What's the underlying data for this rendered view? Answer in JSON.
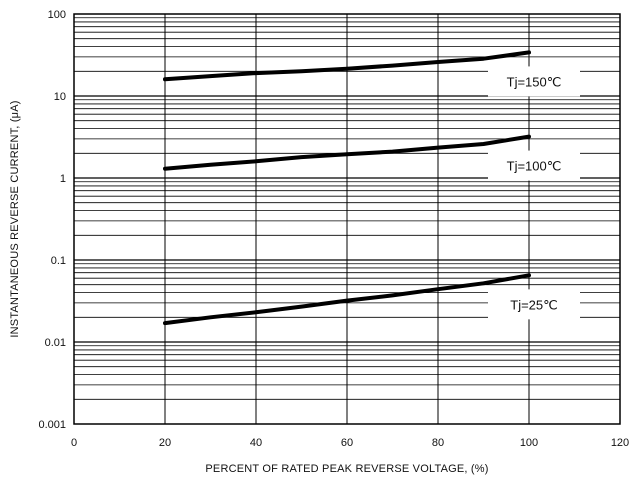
{
  "chart_data": {
    "type": "line",
    "title": "",
    "xlabel": "PERCENT OF RATED PEAK REVERSE VOLTAGE, (%)",
    "ylabel": "INSTANTANEOUS REVERSE CURRENT,  (μA)",
    "xlim": [
      0,
      120
    ],
    "ylim": [
      0.001,
      100
    ],
    "yscale": "log",
    "grid": true,
    "xticks": [
      0,
      20,
      40,
      60,
      80,
      100,
      120
    ],
    "xtick_labels": [
      "0",
      "20",
      "40",
      "60",
      "80",
      "100",
      "120"
    ],
    "yticks": [
      0.001,
      0.01,
      0.1,
      1,
      10,
      100
    ],
    "ytick_labels": [
      "0.001",
      "0.01",
      "0.1",
      "1",
      "10",
      "100"
    ],
    "series": [
      {
        "name": "Tj=150℃",
        "x": [
          20,
          30,
          40,
          50,
          60,
          70,
          80,
          90,
          100
        ],
        "y": [
          16,
          17.5,
          19,
          20,
          21.5,
          23.5,
          26,
          28.5,
          34
        ]
      },
      {
        "name": "Tj=100℃",
        "x": [
          20,
          30,
          40,
          50,
          60,
          70,
          80,
          90,
          100
        ],
        "y": [
          1.3,
          1.45,
          1.6,
          1.8,
          1.95,
          2.1,
          2.35,
          2.6,
          3.2
        ]
      },
      {
        "name": "Tj=25℃",
        "x": [
          20,
          30,
          40,
          50,
          60,
          70,
          80,
          90,
          100
        ],
        "y": [
          0.017,
          0.02,
          0.023,
          0.027,
          0.032,
          0.037,
          0.044,
          0.052,
          0.065
        ]
      }
    ]
  }
}
